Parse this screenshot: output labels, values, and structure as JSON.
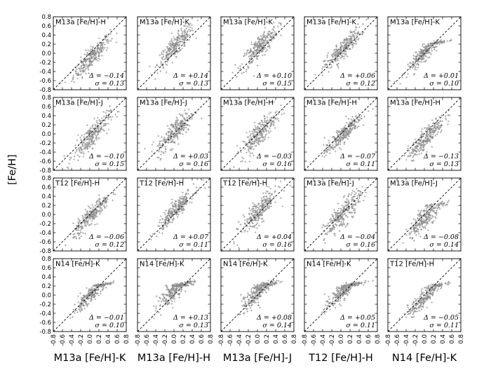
{
  "chart_data": {
    "type": "scatter",
    "layout": "5x4 grid of panels",
    "ylabel": "[Fe/H]",
    "xlim": [
      -0.8,
      0.8
    ],
    "ylim": [
      -0.8,
      0.8
    ],
    "xticks": [
      "-0.8",
      "-0.6",
      "-0.4",
      "-0.2",
      "0.0",
      "0.2",
      "0.4",
      "0.6",
      "0.8"
    ],
    "yticks": [
      "-0.8",
      "-0.6",
      "-0.4",
      "-0.2",
      "0.0",
      "0.2",
      "0.4",
      "0.6",
      "0.8"
    ],
    "marker": "+",
    "marker_color": "#8c8c8c",
    "reference_line": "one-to-one dashed line",
    "column_xlabels": [
      "M13a [Fe/H]-K",
      "M13a [Fe/H]-H",
      "M13a [Fe/H]-J",
      "T12 [Fe/H]-H",
      "N14 [Fe/H]-K"
    ],
    "panels": [
      [
        {
          "label": "M13a [Fe/H]-H",
          "delta": "Δ = −0.14",
          "sigma": "σ = 0.13",
          "offset": -0.14,
          "scatter": 0.13
        },
        {
          "label": "M13a [Fe/H]-K",
          "delta": "Δ = +0.14",
          "sigma": "σ = 0.13",
          "offset": 0.14,
          "scatter": 0.13
        },
        {
          "label": "M13a [Fe/H]-K",
          "delta": "Δ = +0.10",
          "sigma": "σ = 0.15",
          "offset": 0.1,
          "scatter": 0.15
        },
        {
          "label": "M13a [Fe/H]-K",
          "delta": "Δ = +0.06",
          "sigma": "σ = 0.12",
          "offset": 0.06,
          "scatter": 0.12
        },
        {
          "label": "M13a [Fe/H]-K",
          "delta": "Δ = +0.01",
          "sigma": "σ = 0.10",
          "offset": 0.01,
          "scatter": 0.1
        }
      ],
      [
        {
          "label": "M13a [Fe/H]-J",
          "delta": "Δ = −0.10",
          "sigma": "σ = 0.15",
          "offset": -0.1,
          "scatter": 0.15
        },
        {
          "label": "M13a [Fe/H]-J",
          "delta": "Δ = +0.03",
          "sigma": "σ = 0.16",
          "offset": 0.03,
          "scatter": 0.16
        },
        {
          "label": "M13a [Fe/H]-H",
          "delta": "Δ = −0.03",
          "sigma": "σ = 0.16",
          "offset": -0.03,
          "scatter": 0.16
        },
        {
          "label": "M13a [Fe/H]-H",
          "delta": "Δ = −0.07",
          "sigma": "σ = 0.11",
          "offset": -0.07,
          "scatter": 0.11
        },
        {
          "label": "M13a [Fe/H]-H",
          "delta": "Δ = −0.13",
          "sigma": "σ = 0.13",
          "offset": -0.13,
          "scatter": 0.13
        }
      ],
      [
        {
          "label": "T12 [Fe/H]-H",
          "delta": "Δ = −0.06",
          "sigma": "σ = 0.12",
          "offset": -0.06,
          "scatter": 0.12
        },
        {
          "label": "T12 [Fe/H]-H",
          "delta": "Δ = +0.07",
          "sigma": "σ = 0.11",
          "offset": 0.07,
          "scatter": 0.11
        },
        {
          "label": "T12 [Fe/H]-H",
          "delta": "Δ = +0.04",
          "sigma": "σ = 0.16",
          "offset": 0.04,
          "scatter": 0.16
        },
        {
          "label": "M13a [Fe/H]-J",
          "delta": "Δ = −0.04",
          "sigma": "σ = 0.16",
          "offset": -0.04,
          "scatter": 0.16
        },
        {
          "label": "M13a [Fe/H]-J",
          "delta": "Δ = −0.08",
          "sigma": "σ = 0.14",
          "offset": -0.08,
          "scatter": 0.14
        }
      ],
      [
        {
          "label": "N14 [Fe/H]-K",
          "delta": "Δ = −0.01",
          "sigma": "σ = 0.10",
          "offset": -0.01,
          "scatter": 0.1
        },
        {
          "label": "N14 [Fe/H]-K",
          "delta": "Δ = +0.13",
          "sigma": "σ = 0.13",
          "offset": 0.13,
          "scatter": 0.13
        },
        {
          "label": "N14 [Fe/H]-K",
          "delta": "Δ = +0.08",
          "sigma": "σ = 0.14",
          "offset": 0.08,
          "scatter": 0.14
        },
        {
          "label": "N14 [Fe/H]-K",
          "delta": "Δ = +0.05",
          "sigma": "σ = 0.11",
          "offset": 0.05,
          "scatter": 0.11
        },
        {
          "label": "T12 [Fe/H]-H",
          "delta": "Δ = −0.05",
          "sigma": "σ = 0.11",
          "offset": -0.05,
          "scatter": 0.11
        }
      ]
    ]
  }
}
